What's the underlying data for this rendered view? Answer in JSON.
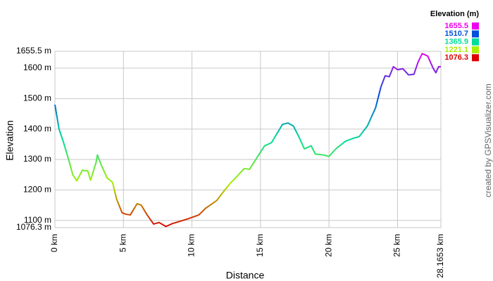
{
  "chart_data": {
    "type": "line",
    "y_label": "Elevation",
    "x_label": "Distance",
    "credit": "created by GPSVisualizer.com",
    "legend_title": "Elevation (m)",
    "color_scale": [
      {
        "value": 1655.5,
        "color": "#ee00ee"
      },
      {
        "value": 1510.7,
        "color": "#0050dd"
      },
      {
        "value": 1365.9,
        "color": "#00dd99"
      },
      {
        "value": 1221.1,
        "color": "#aaee00"
      },
      {
        "value": 1076.3,
        "color": "#dd0000"
      }
    ],
    "grid": true,
    "xlim": [
      0,
      28.1653
    ],
    "ylim": [
      1076.3,
      1655.5
    ],
    "xticks": [
      {
        "value": 0,
        "label": "0 km"
      },
      {
        "value": 5,
        "label": "5 km"
      },
      {
        "value": 10,
        "label": "10 km"
      },
      {
        "value": 15,
        "label": "15 km"
      },
      {
        "value": 20,
        "label": "20 km"
      },
      {
        "value": 25,
        "label": "25 km"
      },
      {
        "value": 28.1653,
        "label": "28.1653 km"
      }
    ],
    "yticks": [
      {
        "value": 1076.3,
        "label": "1076.3 m"
      },
      {
        "value": 1100,
        "label": "1100 m"
      },
      {
        "value": 1200,
        "label": "1200 m"
      },
      {
        "value": 1300,
        "label": "1300 m"
      },
      {
        "value": 1400,
        "label": "1400 m"
      },
      {
        "value": 1500,
        "label": "1500 m"
      },
      {
        "value": 1600,
        "label": "1600 m"
      },
      {
        "value": 1655.5,
        "label": "1655.5 m"
      }
    ],
    "x": [
      0,
      0.3,
      0.6,
      1.0,
      1.3,
      1.6,
      2.0,
      2.4,
      2.6,
      3.0,
      3.1,
      3.4,
      3.8,
      4.2,
      4.5,
      4.9,
      5.2,
      5.5,
      6.0,
      6.3,
      6.7,
      7.2,
      7.6,
      8.1,
      8.6,
      9.2,
      9.7,
      10.5,
      11.0,
      11.8,
      12.4,
      12.8,
      13.3,
      13.8,
      14.2,
      14.8,
      15.3,
      15.8,
      16.2,
      16.6,
      17.0,
      17.4,
      17.8,
      18.2,
      18.7,
      19.0,
      19.6,
      20.0,
      20.5,
      21.2,
      21.8,
      22.2,
      22.8,
      23.4,
      23.8,
      24.1,
      24.4,
      24.7,
      25.0,
      25.4,
      25.8,
      26.2,
      26.5,
      26.8,
      27.2,
      27.6,
      27.8,
      28.0,
      28.1653
    ],
    "values": [
      1480,
      1400,
      1360,
      1300,
      1250,
      1230,
      1265,
      1262,
      1232,
      1290,
      1315,
      1280,
      1240,
      1225,
      1170,
      1125,
      1120,
      1118,
      1155,
      1150,
      1120,
      1088,
      1093,
      1080,
      1090,
      1098,
      1105,
      1118,
      1140,
      1165,
      1200,
      1222,
      1245,
      1270,
      1268,
      1310,
      1345,
      1355,
      1385,
      1415,
      1420,
      1410,
      1375,
      1335,
      1345,
      1318,
      1315,
      1310,
      1335,
      1360,
      1370,
      1375,
      1410,
      1470,
      1540,
      1575,
      1572,
      1605,
      1595,
      1598,
      1578,
      1580,
      1620,
      1648,
      1640,
      1600,
      1585,
      1605,
      1605
    ]
  }
}
